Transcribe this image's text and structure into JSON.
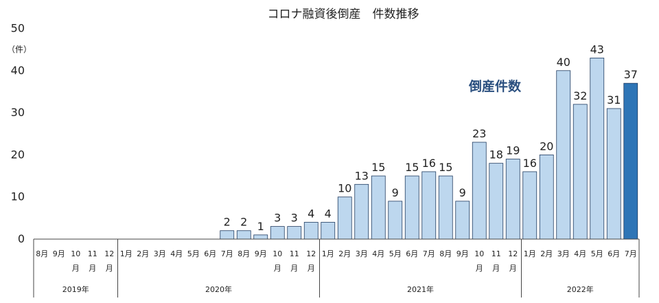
{
  "chart_data": {
    "type": "bar",
    "title": "コロナ融資後倒産　件数推移",
    "unit_label": "（件）",
    "annotation": "倒産件数",
    "ylim": [
      0,
      50
    ],
    "yticks": [
      "0",
      "10",
      "20",
      "30",
      "40",
      "50"
    ],
    "colors": {
      "bar": "#bdd7ee",
      "highlight": "#2e75b6",
      "edge": "#1f3a5f",
      "grid": "#444444"
    },
    "categories": [
      "8月",
      "9月",
      "10月",
      "11月",
      "12月",
      "1月",
      "2月",
      "3月",
      "4月",
      "5月",
      "6月",
      "7月",
      "8月",
      "9月",
      "10月",
      "11月",
      "12月",
      "1月",
      "2月",
      "3月",
      "4月",
      "5月",
      "6月",
      "7月",
      "8月",
      "9月",
      "10月",
      "11月",
      "12月",
      "1月",
      "2月",
      "3月",
      "4月",
      "5月",
      "6月",
      "7月"
    ],
    "category_lines": [
      [
        "8月"
      ],
      [
        "9月"
      ],
      [
        "10",
        "月"
      ],
      [
        "11",
        "月"
      ],
      [
        "12",
        "月"
      ],
      [
        "1月"
      ],
      [
        "2月"
      ],
      [
        "3月"
      ],
      [
        "4月"
      ],
      [
        "5月"
      ],
      [
        "6月"
      ],
      [
        "7月"
      ],
      [
        "8月"
      ],
      [
        "9月"
      ],
      [
        "10",
        "月"
      ],
      [
        "11",
        "月"
      ],
      [
        "12",
        "月"
      ],
      [
        "1月"
      ],
      [
        "2月"
      ],
      [
        "3月"
      ],
      [
        "4月"
      ],
      [
        "5月"
      ],
      [
        "6月"
      ],
      [
        "7月"
      ],
      [
        "8月"
      ],
      [
        "9月"
      ],
      [
        "10",
        "月"
      ],
      [
        "11",
        "月"
      ],
      [
        "12",
        "月"
      ],
      [
        "1月"
      ],
      [
        "2月"
      ],
      [
        "3月"
      ],
      [
        "4月"
      ],
      [
        "5月"
      ],
      [
        "6月"
      ],
      [
        "7月"
      ]
    ],
    "values": [
      null,
      null,
      null,
      null,
      null,
      null,
      null,
      null,
      null,
      null,
      null,
      2,
      2,
      1,
      3,
      3,
      4,
      4,
      10,
      13,
      15,
      9,
      15,
      16,
      15,
      9,
      23,
      18,
      19,
      16,
      20,
      40,
      32,
      43,
      31,
      37
    ],
    "highlight_index": 35,
    "year_groups": [
      {
        "label": "2019年",
        "count": 5
      },
      {
        "label": "2020年",
        "count": 12
      },
      {
        "label": "2021年",
        "count": 12
      },
      {
        "label": "2022年",
        "count": 7
      }
    ]
  }
}
